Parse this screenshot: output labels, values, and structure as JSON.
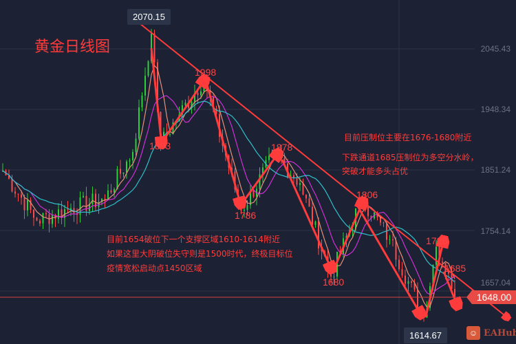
{
  "chart_data": {
    "type": "candlestick",
    "title": "黄金日线图",
    "y_ticks": [
      "2045.43",
      "1948.34",
      "1851.24",
      "1754.14",
      "1657.04"
    ],
    "ylim": [
      1600,
      2090
    ],
    "grid": true,
    "current_price": "1648.00",
    "high_label": "2070.15",
    "low_label": "1614.67",
    "price_path": [
      {
        "bar": 0,
        "price": 1850
      },
      {
        "bar": 11,
        "price": 1770
      },
      {
        "bar": 22,
        "price": 1790
      },
      {
        "bar": 33,
        "price": 1805
      },
      {
        "bar": 42,
        "price": 1880
      },
      {
        "bar": 48,
        "price": 2070.15
      },
      {
        "bar": 51,
        "price": 1893
      },
      {
        "bar": 57,
        "price": 1940
      },
      {
        "bar": 65,
        "price": 1998
      },
      {
        "bar": 77,
        "price": 1786
      },
      {
        "bar": 88,
        "price": 1878
      },
      {
        "bar": 96,
        "price": 1830
      },
      {
        "bar": 106,
        "price": 1680
      },
      {
        "bar": 116,
        "price": 1806
      },
      {
        "bar": 125,
        "price": 1740
      },
      {
        "bar": 136,
        "price": 1614.67
      },
      {
        "bar": 140,
        "price": 1728
      },
      {
        "bar": 144,
        "price": 1685
      },
      {
        "bar": 146,
        "price": 1648
      }
    ],
    "moving_averages": [
      {
        "period": 5,
        "color": "#e8907a"
      },
      {
        "period": 10,
        "color": "#d22fd8"
      },
      {
        "period": 20,
        "color": "#2fc0cc"
      }
    ],
    "colors": {
      "up": "#2fcf3a",
      "down": "#ff4a4a",
      "annotation": "#ff3b3b",
      "background": "#1c2233"
    }
  },
  "annotations": {
    "pivots": [
      "1998",
      "1893",
      "1878",
      "1786",
      "1680",
      "1806",
      "1728",
      "1685"
    ],
    "right_notes": [
      "目前压制位主要在1676-1680附近",
      "下跌通道1685压制位为多空分水岭，",
      "突破才能多头占优"
    ],
    "left_notes": [
      "目前1654破位下一个支撑区域1610-1614附近",
      "如果这里大阴破位失守则是1500时代，终极目标位",
      "疫情宽松启动点1450区域"
    ]
  },
  "branding": {
    "logo_text": "EAHub"
  }
}
